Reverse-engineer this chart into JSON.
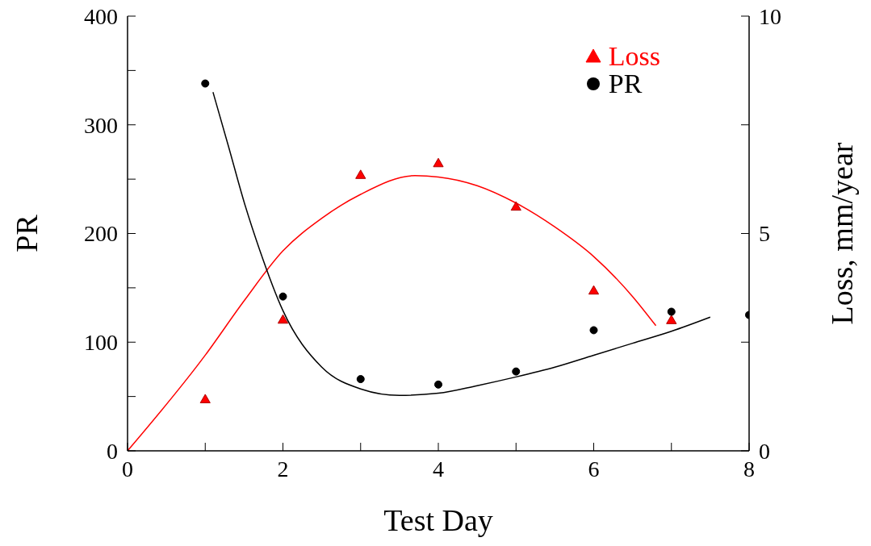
{
  "chart_data": {
    "type": "scatter",
    "xlabel": "Test Day",
    "ylabel": "PR",
    "y2label": "Loss, mm/year",
    "xlim": [
      0,
      8
    ],
    "xticks": [
      0,
      {
        "value": 1,
        "label": null
      },
      2,
      {
        "value": 3,
        "label": null
      },
      4,
      {
        "value": 5,
        "label": null
      },
      6,
      {
        "value": 7,
        "label": null
      },
      8
    ],
    "ylim": [
      0,
      400
    ],
    "yticks": [
      0,
      {
        "value": 50,
        "label": null
      },
      100,
      {
        "value": 150,
        "label": null
      },
      200,
      {
        "value": 250,
        "label": null
      },
      300,
      {
        "value": 350,
        "label": null
      },
      400
    ],
    "y2lim": [
      0,
      10
    ],
    "y2ticks": [
      0,
      {
        "value": 2.5,
        "label": null
      },
      5,
      {
        "value": 7.5,
        "label": null
      },
      10
    ],
    "grid": false,
    "legend": "top right",
    "series": [
      {
        "name": "Loss",
        "axis": "y2",
        "marker": "triangle",
        "color": "#ff0000",
        "x": [
          1,
          2,
          3,
          4,
          5,
          6,
          7
        ],
        "values": [
          1.17,
          3.0,
          6.33,
          6.6,
          5.6,
          3.67,
          2.99
        ]
      },
      {
        "name": "PR",
        "marker": "circle",
        "color": "#000000",
        "x": [
          1,
          2,
          3,
          4,
          5,
          6,
          7,
          8
        ],
        "values": [
          338,
          142,
          66,
          61,
          73,
          111,
          128,
          125
        ]
      },
      {
        "type": "line",
        "axis": "y2",
        "color": "#ff0000",
        "marker": "none",
        "x": [
          0,
          1,
          1.5,
          2,
          2.5,
          3,
          3.7,
          4,
          4.5,
          5,
          5.5,
          6,
          6.5,
          6.8
        ],
        "values": [
          0,
          2.2,
          3.45,
          4.6,
          5.35,
          5.9,
          6.33,
          6.3,
          6.1,
          5.7,
          5.15,
          4.47,
          3.55,
          2.88
        ]
      },
      {
        "type": "line",
        "color": "#000000",
        "marker": "none",
        "x": [
          1.1,
          1.3,
          1.5,
          1.7,
          2,
          2.5,
          3,
          3.5,
          4,
          4.5,
          5,
          5.5,
          6,
          6.5,
          7,
          7.5
        ],
        "values": [
          330,
          280,
          229,
          185,
          129,
          77,
          57,
          51,
          53,
          60,
          68,
          77,
          88,
          99,
          110,
          123
        ]
      }
    ]
  }
}
